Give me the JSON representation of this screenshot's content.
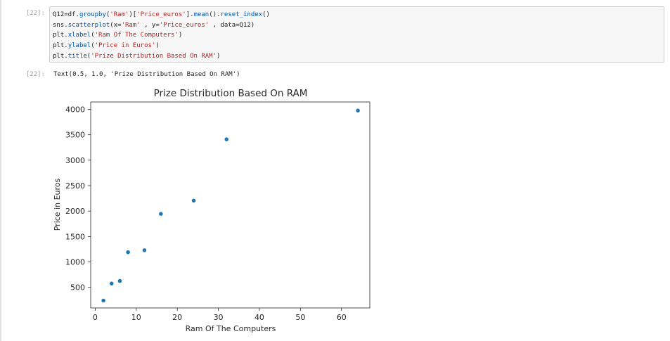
{
  "input_cell": {
    "prompt": "[22]:",
    "code_lines": [
      [
        {
          "t": "var",
          "v": "Q12=df."
        },
        {
          "t": "fn",
          "v": "groupby"
        },
        {
          "t": "var",
          "v": "("
        },
        {
          "t": "str",
          "v": "'Ram'"
        },
        {
          "t": "var",
          "v": ")["
        },
        {
          "t": "str",
          "v": "'Price_euros'"
        },
        {
          "t": "var",
          "v": "]."
        },
        {
          "t": "fn",
          "v": "mean"
        },
        {
          "t": "var",
          "v": "()."
        },
        {
          "t": "fn",
          "v": "reset_index"
        },
        {
          "t": "var",
          "v": "()"
        }
      ],
      [
        {
          "t": "var",
          "v": "sns."
        },
        {
          "t": "fn",
          "v": "scatterplot"
        },
        {
          "t": "var",
          "v": "(x="
        },
        {
          "t": "str",
          "v": "'Ram'"
        },
        {
          "t": "var",
          "v": " , y="
        },
        {
          "t": "str",
          "v": "'Price_euros'"
        },
        {
          "t": "var",
          "v": " , data=Q12)"
        }
      ],
      [
        {
          "t": "var",
          "v": "plt."
        },
        {
          "t": "fn",
          "v": "xlabel"
        },
        {
          "t": "var",
          "v": "("
        },
        {
          "t": "str",
          "v": "'Ram Of The Computers'"
        },
        {
          "t": "var",
          "v": ")"
        }
      ],
      [
        {
          "t": "var",
          "v": "plt."
        },
        {
          "t": "fn",
          "v": "ylabel"
        },
        {
          "t": "var",
          "v": "("
        },
        {
          "t": "str",
          "v": "'Price in Euros'"
        },
        {
          "t": "var",
          "v": ")"
        }
      ],
      [
        {
          "t": "var",
          "v": "plt."
        },
        {
          "t": "fn",
          "v": "title"
        },
        {
          "t": "var",
          "v": "("
        },
        {
          "t": "str",
          "v": "'Prize Distribution Based On RAM'"
        },
        {
          "t": "var",
          "v": ")"
        }
      ]
    ]
  },
  "output_cell": {
    "prompt": "[22]:",
    "text": "Text(0.5, 1.0, 'Prize Distribution Based On RAM')"
  },
  "colors": {
    "point": "#1f77b4",
    "code_fn": "#0055aa",
    "code_str": "#ba2121"
  },
  "chart_data": {
    "type": "scatter",
    "title": "Prize Distribution Based On RAM",
    "xlabel": "Ram Of The Computers",
    "ylabel": "Price in Euros",
    "xlim": [
      -1.1,
      66.9
    ],
    "ylim": [
      95,
      4145
    ],
    "xticks": [
      0,
      10,
      20,
      30,
      40,
      50,
      60
    ],
    "yticks": [
      500,
      1000,
      1500,
      2000,
      2500,
      3000,
      3500,
      4000
    ],
    "grid": false,
    "points": [
      {
        "x": 2,
        "y": 240
      },
      {
        "x": 4,
        "y": 575
      },
      {
        "x": 6,
        "y": 625
      },
      {
        "x": 8,
        "y": 1190
      },
      {
        "x": 12,
        "y": 1230
      },
      {
        "x": 16,
        "y": 1945
      },
      {
        "x": 24,
        "y": 2205
      },
      {
        "x": 32,
        "y": 3410
      },
      {
        "x": 64,
        "y": 3975
      }
    ]
  }
}
